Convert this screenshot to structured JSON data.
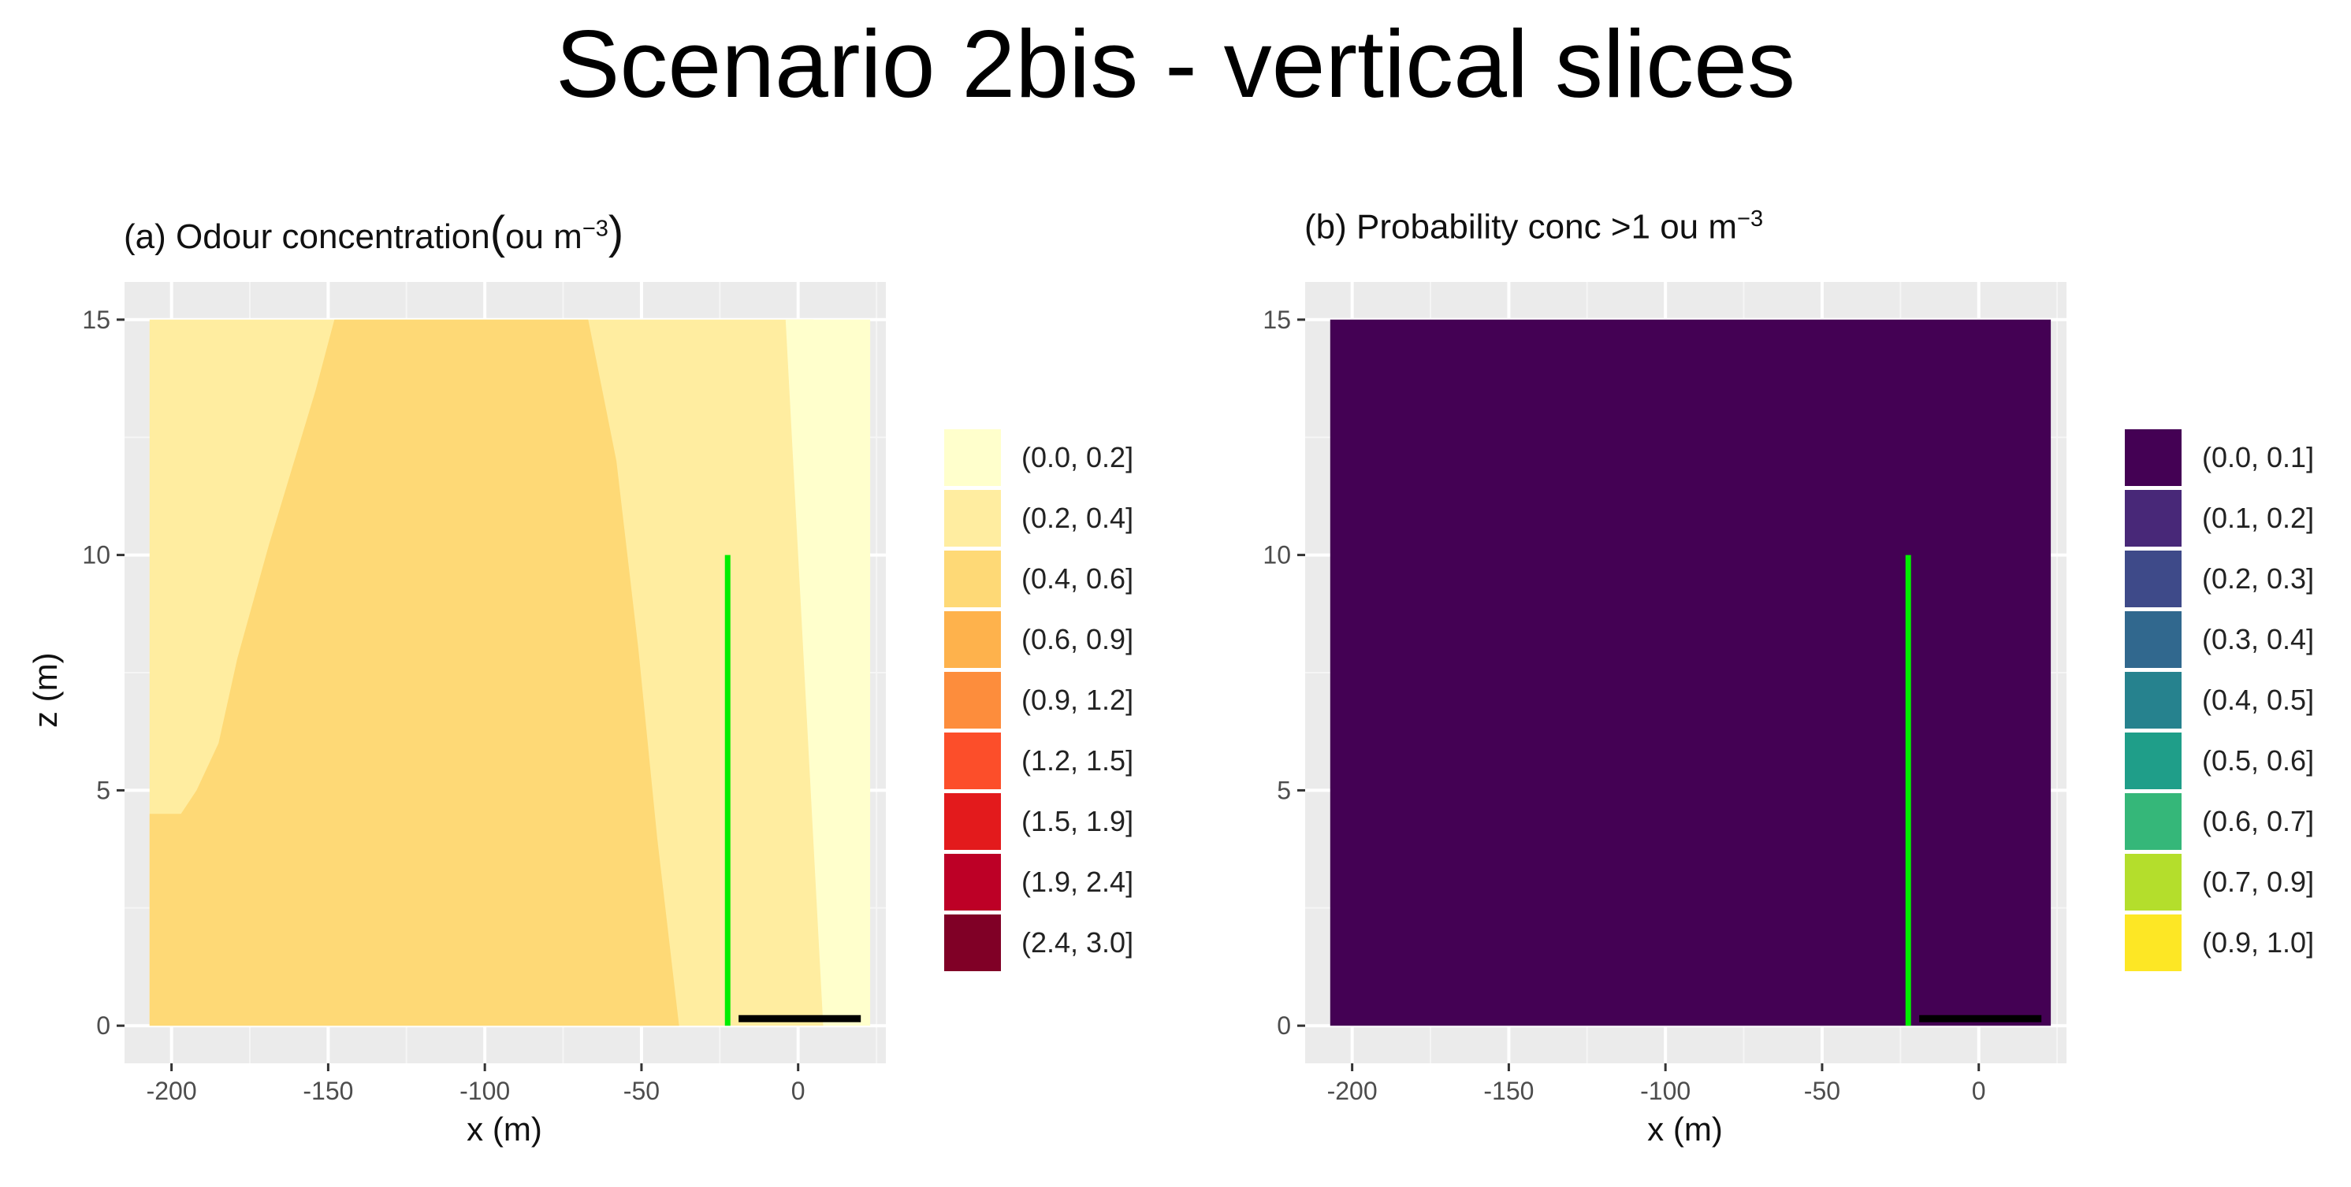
{
  "title": "Scenario 2bis  - vertical slices",
  "panel_a": {
    "subtitle_prefix": "(a) Odour concentration",
    "subtitle_unit": "ou m",
    "subtitle_exp": "−3",
    "open_paren": "(",
    "close_paren": ")"
  },
  "panel_b": {
    "subtitle_prefix": "(b) Probability conc >1 ou m",
    "subtitle_exp": "−3"
  },
  "chart_data": [
    {
      "type": "heatmap",
      "title": "(a) Odour concentration(ou m−3)",
      "xlabel": "x (m)",
      "ylabel": "z (m)",
      "xlim": [
        -215,
        28
      ],
      "ylim": [
        -0.8,
        15.8
      ],
      "x_ticks": [
        -200,
        -150,
        -100,
        -50,
        0
      ],
      "y_ticks": [
        0,
        5,
        10,
        15
      ],
      "grid": true,
      "legend_position": "right",
      "legend": [
        {
          "label": "(0.0, 0.2]",
          "color": "#ffffcc"
        },
        {
          "label": "(0.2, 0.4]",
          "color": "#ffeda0"
        },
        {
          "label": "(0.4, 0.6]",
          "color": "#fed976"
        },
        {
          "label": "(0.6, 0.9]",
          "color": "#feb24c"
        },
        {
          "label": "(0.9, 1.2]",
          "color": "#fd8d3c"
        },
        {
          "label": "(1.2, 1.5]",
          "color": "#fc4e2a"
        },
        {
          "label": "(1.5, 1.9]",
          "color": "#e31a1c"
        },
        {
          "label": "(1.9, 2.4]",
          "color": "#bd0026"
        },
        {
          "label": "(2.4, 3.0]",
          "color": "#800026"
        }
      ],
      "regions": [
        {
          "class": "(0.2, 0.4]",
          "color": "#ffeda0",
          "polygon": [
            [
              -207,
              0
            ],
            [
              -207,
              15
            ],
            [
              5,
              15
            ],
            [
              8,
              0
            ]
          ]
        },
        {
          "class": "(0.0, 0.2]",
          "color": "#ffffcc",
          "polygon": [
            [
              -4,
              15
            ],
            [
              23,
              15
            ],
            [
              23,
              0
            ],
            [
              8,
              0
            ]
          ]
        },
        {
          "class": "(0.4, 0.6]",
          "color": "#fed976",
          "polygon": [
            [
              -207,
              0
            ],
            [
              -207,
              4.5
            ],
            [
              -197,
              4.5
            ],
            [
              -192,
              5
            ],
            [
              -185,
              6
            ],
            [
              -179,
              7.8
            ],
            [
              -169,
              10.2
            ],
            [
              -154,
              13.5
            ],
            [
              -148,
              15
            ],
            [
              -67,
              15
            ],
            [
              -58,
              12
            ],
            [
              -51,
              8
            ],
            [
              -45,
              4
            ],
            [
              -38,
              0
            ]
          ]
        }
      ],
      "lines": [
        {
          "name": "green",
          "color": "#00ee00",
          "points": [
            [
              -22.5,
              0
            ],
            [
              -22.5,
              10
            ]
          ]
        },
        {
          "name": "black",
          "color": "#000000",
          "points": [
            [
              -19,
              0.15
            ],
            [
              20,
              0.15
            ]
          ]
        }
      ]
    },
    {
      "type": "heatmap",
      "title": "(b) Probability conc >1 ou m−3",
      "xlabel": "x (m)",
      "ylabel": "",
      "xlim": [
        -215,
        28
      ],
      "ylim": [
        -0.8,
        15.8
      ],
      "x_ticks": [
        -200,
        -150,
        -100,
        -50,
        0
      ],
      "y_ticks": [
        0,
        5,
        10,
        15
      ],
      "grid": true,
      "legend_position": "right",
      "legend": [
        {
          "label": "(0.0, 0.1]",
          "color": "#440154"
        },
        {
          "label": "(0.1, 0.2]",
          "color": "#482878"
        },
        {
          "label": "(0.2, 0.3]",
          "color": "#3e4a89"
        },
        {
          "label": "(0.3, 0.4]",
          "color": "#31688e"
        },
        {
          "label": "(0.4, 0.5]",
          "color": "#26828e"
        },
        {
          "label": "(0.5, 0.6]",
          "color": "#1f9e89"
        },
        {
          "label": "(0.6, 0.7]",
          "color": "#35b779"
        },
        {
          "label": "(0.7, 0.9]",
          "color": "#b4de2c"
        },
        {
          "label": "(0.9, 1.0]",
          "color": "#fde725"
        }
      ],
      "regions": [
        {
          "class": "(0.0, 0.1]",
          "color": "#440154",
          "polygon": [
            [
              -207,
              0
            ],
            [
              -207,
              15
            ],
            [
              23,
              15
            ],
            [
              23,
              0
            ]
          ]
        }
      ],
      "lines": [
        {
          "name": "green",
          "color": "#00ee00",
          "points": [
            [
              -22.5,
              0
            ],
            [
              -22.5,
              10
            ]
          ]
        },
        {
          "name": "black",
          "color": "#000000",
          "points": [
            [
              -19,
              0.15
            ],
            [
              20,
              0.15
            ]
          ]
        }
      ]
    }
  ]
}
